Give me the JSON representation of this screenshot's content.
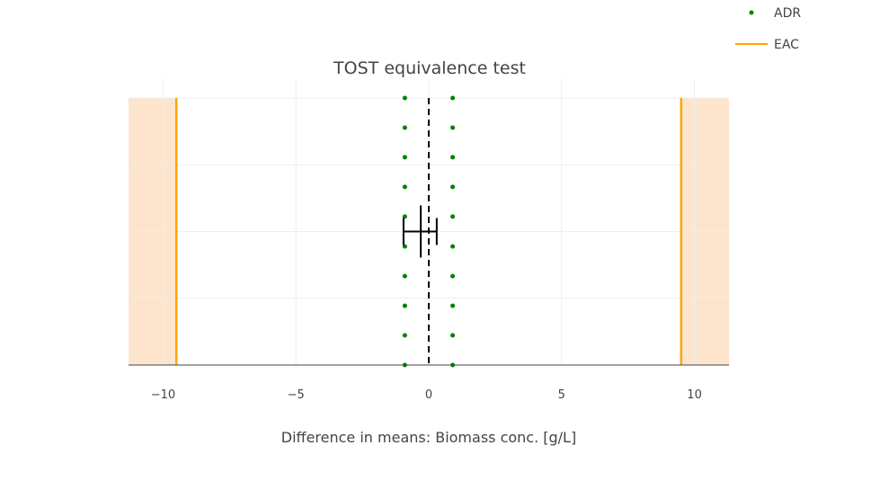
{
  "chart_data": {
    "type": "scatter",
    "title": "TOST equivalence test",
    "xlabel": "Difference in means: Biomass conc. [g/L]",
    "ylabel": "",
    "xlim": [
      -11.3,
      11.3
    ],
    "ylim": [
      0,
      1
    ],
    "x_ticks": [
      -10,
      -5,
      0,
      5,
      10
    ],
    "x_tick_labels": [
      "−10",
      "−5",
      "0",
      "5",
      "10"
    ],
    "grid": true,
    "legend_position": "top-right",
    "eac": {
      "name": "EAC",
      "lower": -9.5,
      "upper": 9.5,
      "color": "#ffa500"
    },
    "adr": {
      "name": "ADR",
      "lower": -0.9,
      "upper": 0.9,
      "color": "#008000",
      "y": [
        0,
        0.111,
        0.222,
        0.333,
        0.444,
        0.556,
        0.667,
        0.778,
        0.889,
        1
      ]
    },
    "zero_line": {
      "x": 0,
      "style": "dashed",
      "color": "#000000"
    },
    "estimate": {
      "mean": -0.3,
      "ci_lower": -0.95,
      "ci_upper": 0.3,
      "y": 0.5
    },
    "colors": {
      "shade": "#fde5cd",
      "grid": "#eeeeee",
      "axis": "#444444"
    }
  }
}
